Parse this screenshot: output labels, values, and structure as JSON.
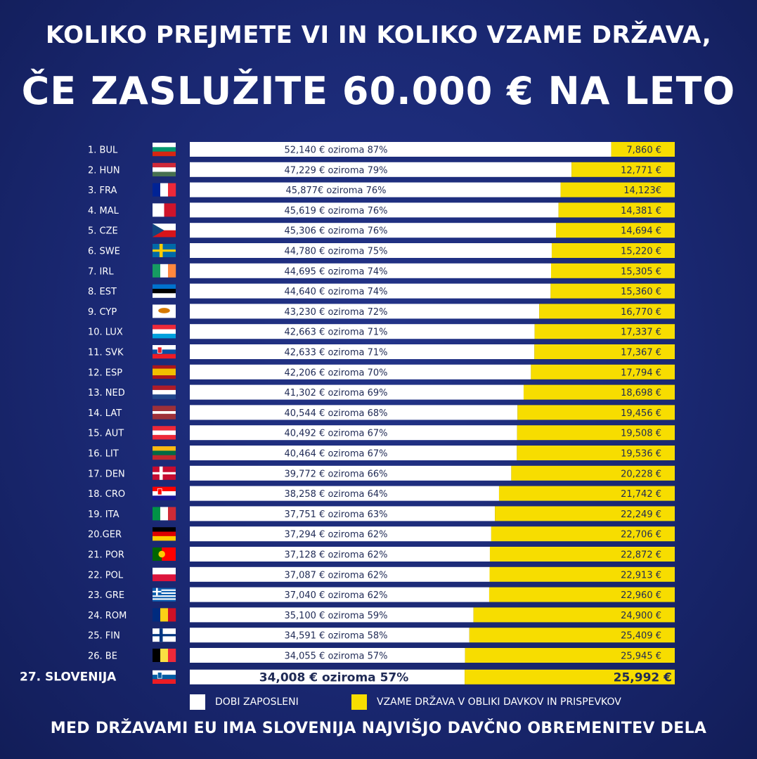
{
  "title_line1": "KOLIKO PREJMETE VI IN KOLIKO VZAME DRŽAVA,",
  "title_line2": "ČE ZASLUŽITE 60.000 € NA LETO",
  "footer": "MED DRŽAVAMI EU IMA SLOVENIJA NAJVIŠJO DAVČNO OBREMENITEV DELA",
  "legend": {
    "net_label": "DOBI ZAPOSLENI",
    "tax_label": "VZAME DRŽAVA V OBLIKI DAVKOV IN PRISPEVKOV"
  },
  "colors": {
    "background": "#1a2872",
    "net": "#ffffff",
    "tax": "#f7dd00",
    "text_dark": "#1f2a55"
  },
  "chart_data": {
    "type": "bar",
    "orientation": "horizontal",
    "stacked": true,
    "total": 60000,
    "series": [
      {
        "name": "DOBI ZAPOSLENI",
        "color": "#ffffff"
      },
      {
        "name": "VZAME DRŽAVA V OBLIKI DAVKOV IN PRISPEVKOV",
        "color": "#f7dd00"
      }
    ],
    "rows": [
      {
        "rank_label": "1.  BUL",
        "flag": "bulgaria",
        "net": 52140,
        "tax": 7860,
        "net_label": "52,140 € oziroma 87%",
        "tax_label": "7,860 €"
      },
      {
        "rank_label": "2.  HUN",
        "flag": "hungary",
        "net": 47229,
        "tax": 12771,
        "net_label": "47,229 € oziroma 79%",
        "tax_label": "12,771 €"
      },
      {
        "rank_label": "3.  FRA",
        "flag": "france",
        "net": 45877,
        "tax": 14123,
        "net_label": "45,877€ oziroma 76%",
        "tax_label": "14,123€"
      },
      {
        "rank_label": "4.  MAL",
        "flag": "malta",
        "net": 45619,
        "tax": 14381,
        "net_label": "45,619 € oziroma 76%",
        "tax_label": "14,381 €"
      },
      {
        "rank_label": "5.  CZE",
        "flag": "czechia",
        "net": 45306,
        "tax": 14694,
        "net_label": "45,306 € oziroma 76%",
        "tax_label": "14,694 €"
      },
      {
        "rank_label": "6.  SWE",
        "flag": "sweden",
        "net": 44780,
        "tax": 15220,
        "net_label": "44,780 € oziroma 75%",
        "tax_label": "15,220 €"
      },
      {
        "rank_label": "7.  IRL",
        "flag": "ireland",
        "net": 44695,
        "tax": 15305,
        "net_label": "44,695 € oziroma 74%",
        "tax_label": "15,305 €"
      },
      {
        "rank_label": "8.  EST",
        "flag": "estonia",
        "net": 44640,
        "tax": 15360,
        "net_label": "44,640 € oziroma 74%",
        "tax_label": "15,360 €"
      },
      {
        "rank_label": "9.  CYP",
        "flag": "cyprus",
        "net": 43230,
        "tax": 16770,
        "net_label": "43,230 € oziroma 72%",
        "tax_label": "16,770 €"
      },
      {
        "rank_label": "10. LUX",
        "flag": "luxembourg",
        "net": 42663,
        "tax": 17337,
        "net_label": "42,663 € oziroma 71%",
        "tax_label": "17,337 €"
      },
      {
        "rank_label": "11.  SVK",
        "flag": "slovakia",
        "net": 42633,
        "tax": 17367,
        "net_label": "42,633 € oziroma 71%",
        "tax_label": "17,367 €"
      },
      {
        "rank_label": "12. ESP",
        "flag": "spain",
        "net": 42206,
        "tax": 17794,
        "net_label": "42,206 € oziroma 70%",
        "tax_label": "17,794 €"
      },
      {
        "rank_label": "13. NED",
        "flag": "netherlands",
        "net": 41302,
        "tax": 18698,
        "net_label": "41,302 € oziroma 69%",
        "tax_label": "18,698 €"
      },
      {
        "rank_label": "14. LAT",
        "flag": "latvia",
        "net": 40544,
        "tax": 19456,
        "net_label": "40,544 € oziroma 68%",
        "tax_label": "19,456 €"
      },
      {
        "rank_label": "15. AUT",
        "flag": "austria",
        "net": 40492,
        "tax": 19508,
        "net_label": "40,492 € oziroma 67%",
        "tax_label": "19,508 €"
      },
      {
        "rank_label": "16. LIT",
        "flag": "lithuania",
        "net": 40464,
        "tax": 19536,
        "net_label": "40,464 € oziroma 67%",
        "tax_label": "19,536 €"
      },
      {
        "rank_label": "17. DEN",
        "flag": "denmark",
        "net": 39772,
        "tax": 20228,
        "net_label": "39,772 € oziroma 66%",
        "tax_label": "20,228 €"
      },
      {
        "rank_label": "18. CRO",
        "flag": "croatia",
        "net": 38258,
        "tax": 21742,
        "net_label": "38,258 € oziroma 64%",
        "tax_label": "21,742 €"
      },
      {
        "rank_label": "19. ITA",
        "flag": "italy",
        "net": 37751,
        "tax": 22249,
        "net_label": "37,751 € oziroma 63%",
        "tax_label": "22,249 €"
      },
      {
        "rank_label": "20.GER",
        "flag": "germany",
        "net": 37294,
        "tax": 22706,
        "net_label": "37,294 € oziroma 62%",
        "tax_label": "22,706 €"
      },
      {
        "rank_label": "21. POR",
        "flag": "portugal",
        "net": 37128,
        "tax": 22872,
        "net_label": "37,128 € oziroma 62%",
        "tax_label": "22,872 €"
      },
      {
        "rank_label": "22. POL",
        "flag": "poland",
        "net": 37087,
        "tax": 22913,
        "net_label": "37,087 € oziroma 62%",
        "tax_label": "22,913 €"
      },
      {
        "rank_label": "23. GRE",
        "flag": "greece",
        "net": 37040,
        "tax": 22960,
        "net_label": "37,040 € oziroma 62%",
        "tax_label": "22,960 €"
      },
      {
        "rank_label": "24. ROM",
        "flag": "romania",
        "net": 35100,
        "tax": 24900,
        "net_label": "35,100 € oziroma 59%",
        "tax_label": "24,900 €"
      },
      {
        "rank_label": "25. FIN",
        "flag": "finland",
        "net": 34591,
        "tax": 25409,
        "net_label": "34,591 € oziroma 58%",
        "tax_label": "25,409 €"
      },
      {
        "rank_label": "26. BE",
        "flag": "belgium",
        "net": 34055,
        "tax": 25945,
        "net_label": "34,055 € oziroma 57%",
        "tax_label": "25,945 €"
      },
      {
        "rank_label": "27. SLOVENIJA",
        "flag": "slovenia",
        "net": 34008,
        "tax": 25992,
        "net_label": "34,008 € oziroma 57%",
        "tax_label": "25,992 €",
        "highlight": true
      }
    ]
  }
}
